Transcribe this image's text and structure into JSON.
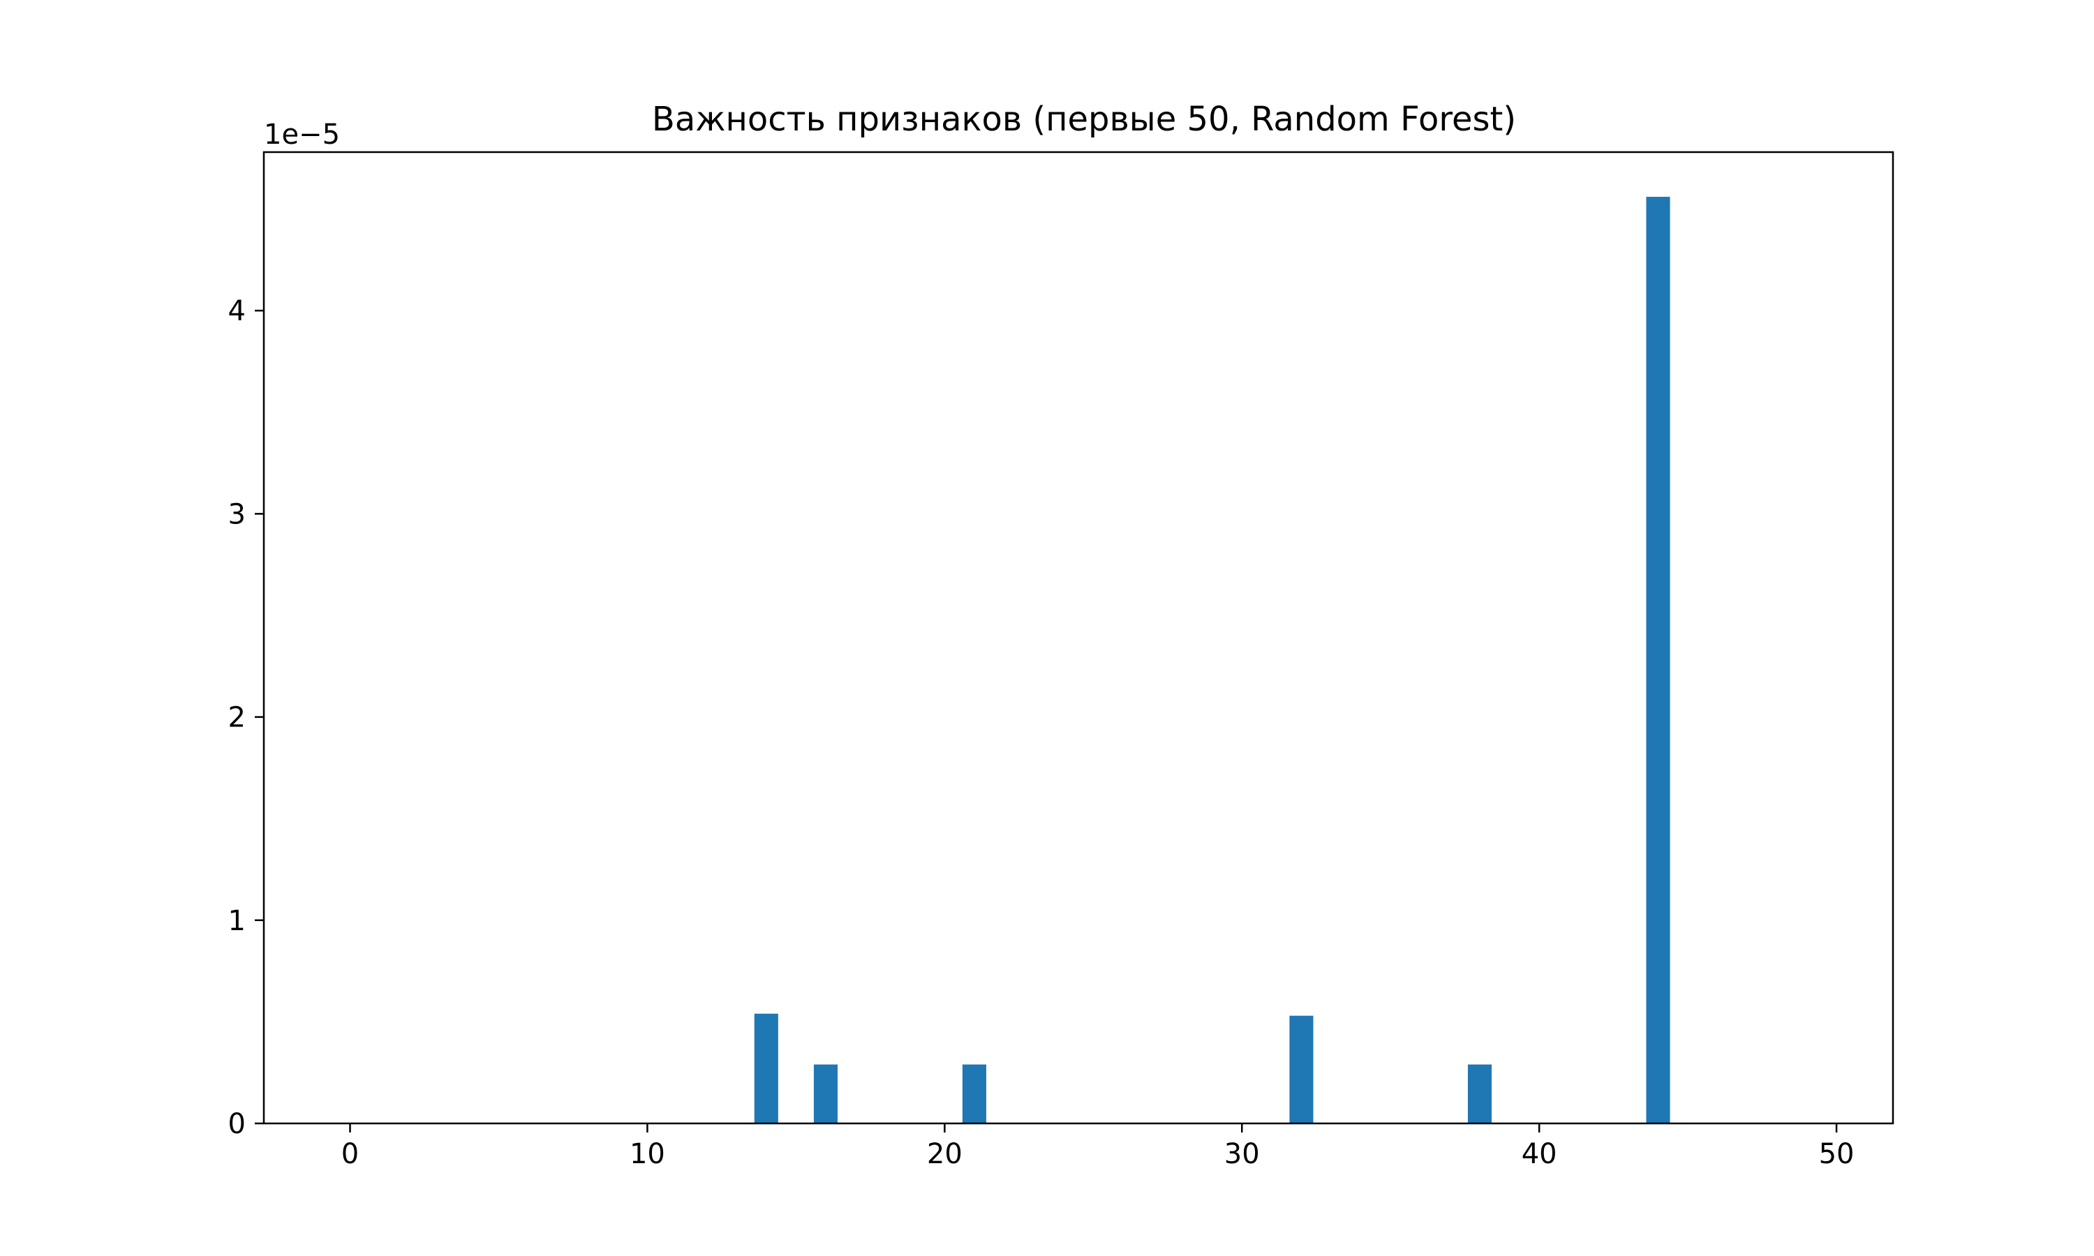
{
  "chart_data": {
    "type": "bar",
    "title": "Важность признаков (первые 50, Random Forest)",
    "xlabel": "",
    "ylabel": "",
    "y_offset_label": "1e−5",
    "x": [
      14,
      16,
      21,
      32,
      38,
      44
    ],
    "values": [
      5.4e-06,
      2.9e-06,
      2.9e-06,
      5.3e-06,
      2.9e-06,
      4.56e-05
    ],
    "x_count": 50,
    "xlim": [
      -2.9,
      51.9
    ],
    "ylim": [
      0,
      4.78e-05
    ],
    "x_ticks": [
      0,
      10,
      20,
      30,
      40,
      50
    ],
    "x_tick_labels": [
      "0",
      "10",
      "20",
      "30",
      "40",
      "50"
    ],
    "y_ticks": [
      0,
      1e-05,
      2e-05,
      3e-05,
      4e-05
    ],
    "y_tick_labels": [
      "0",
      "1",
      "2",
      "3",
      "4"
    ],
    "bar_color": "#1f77b4",
    "grid": false,
    "legend": "none"
  }
}
